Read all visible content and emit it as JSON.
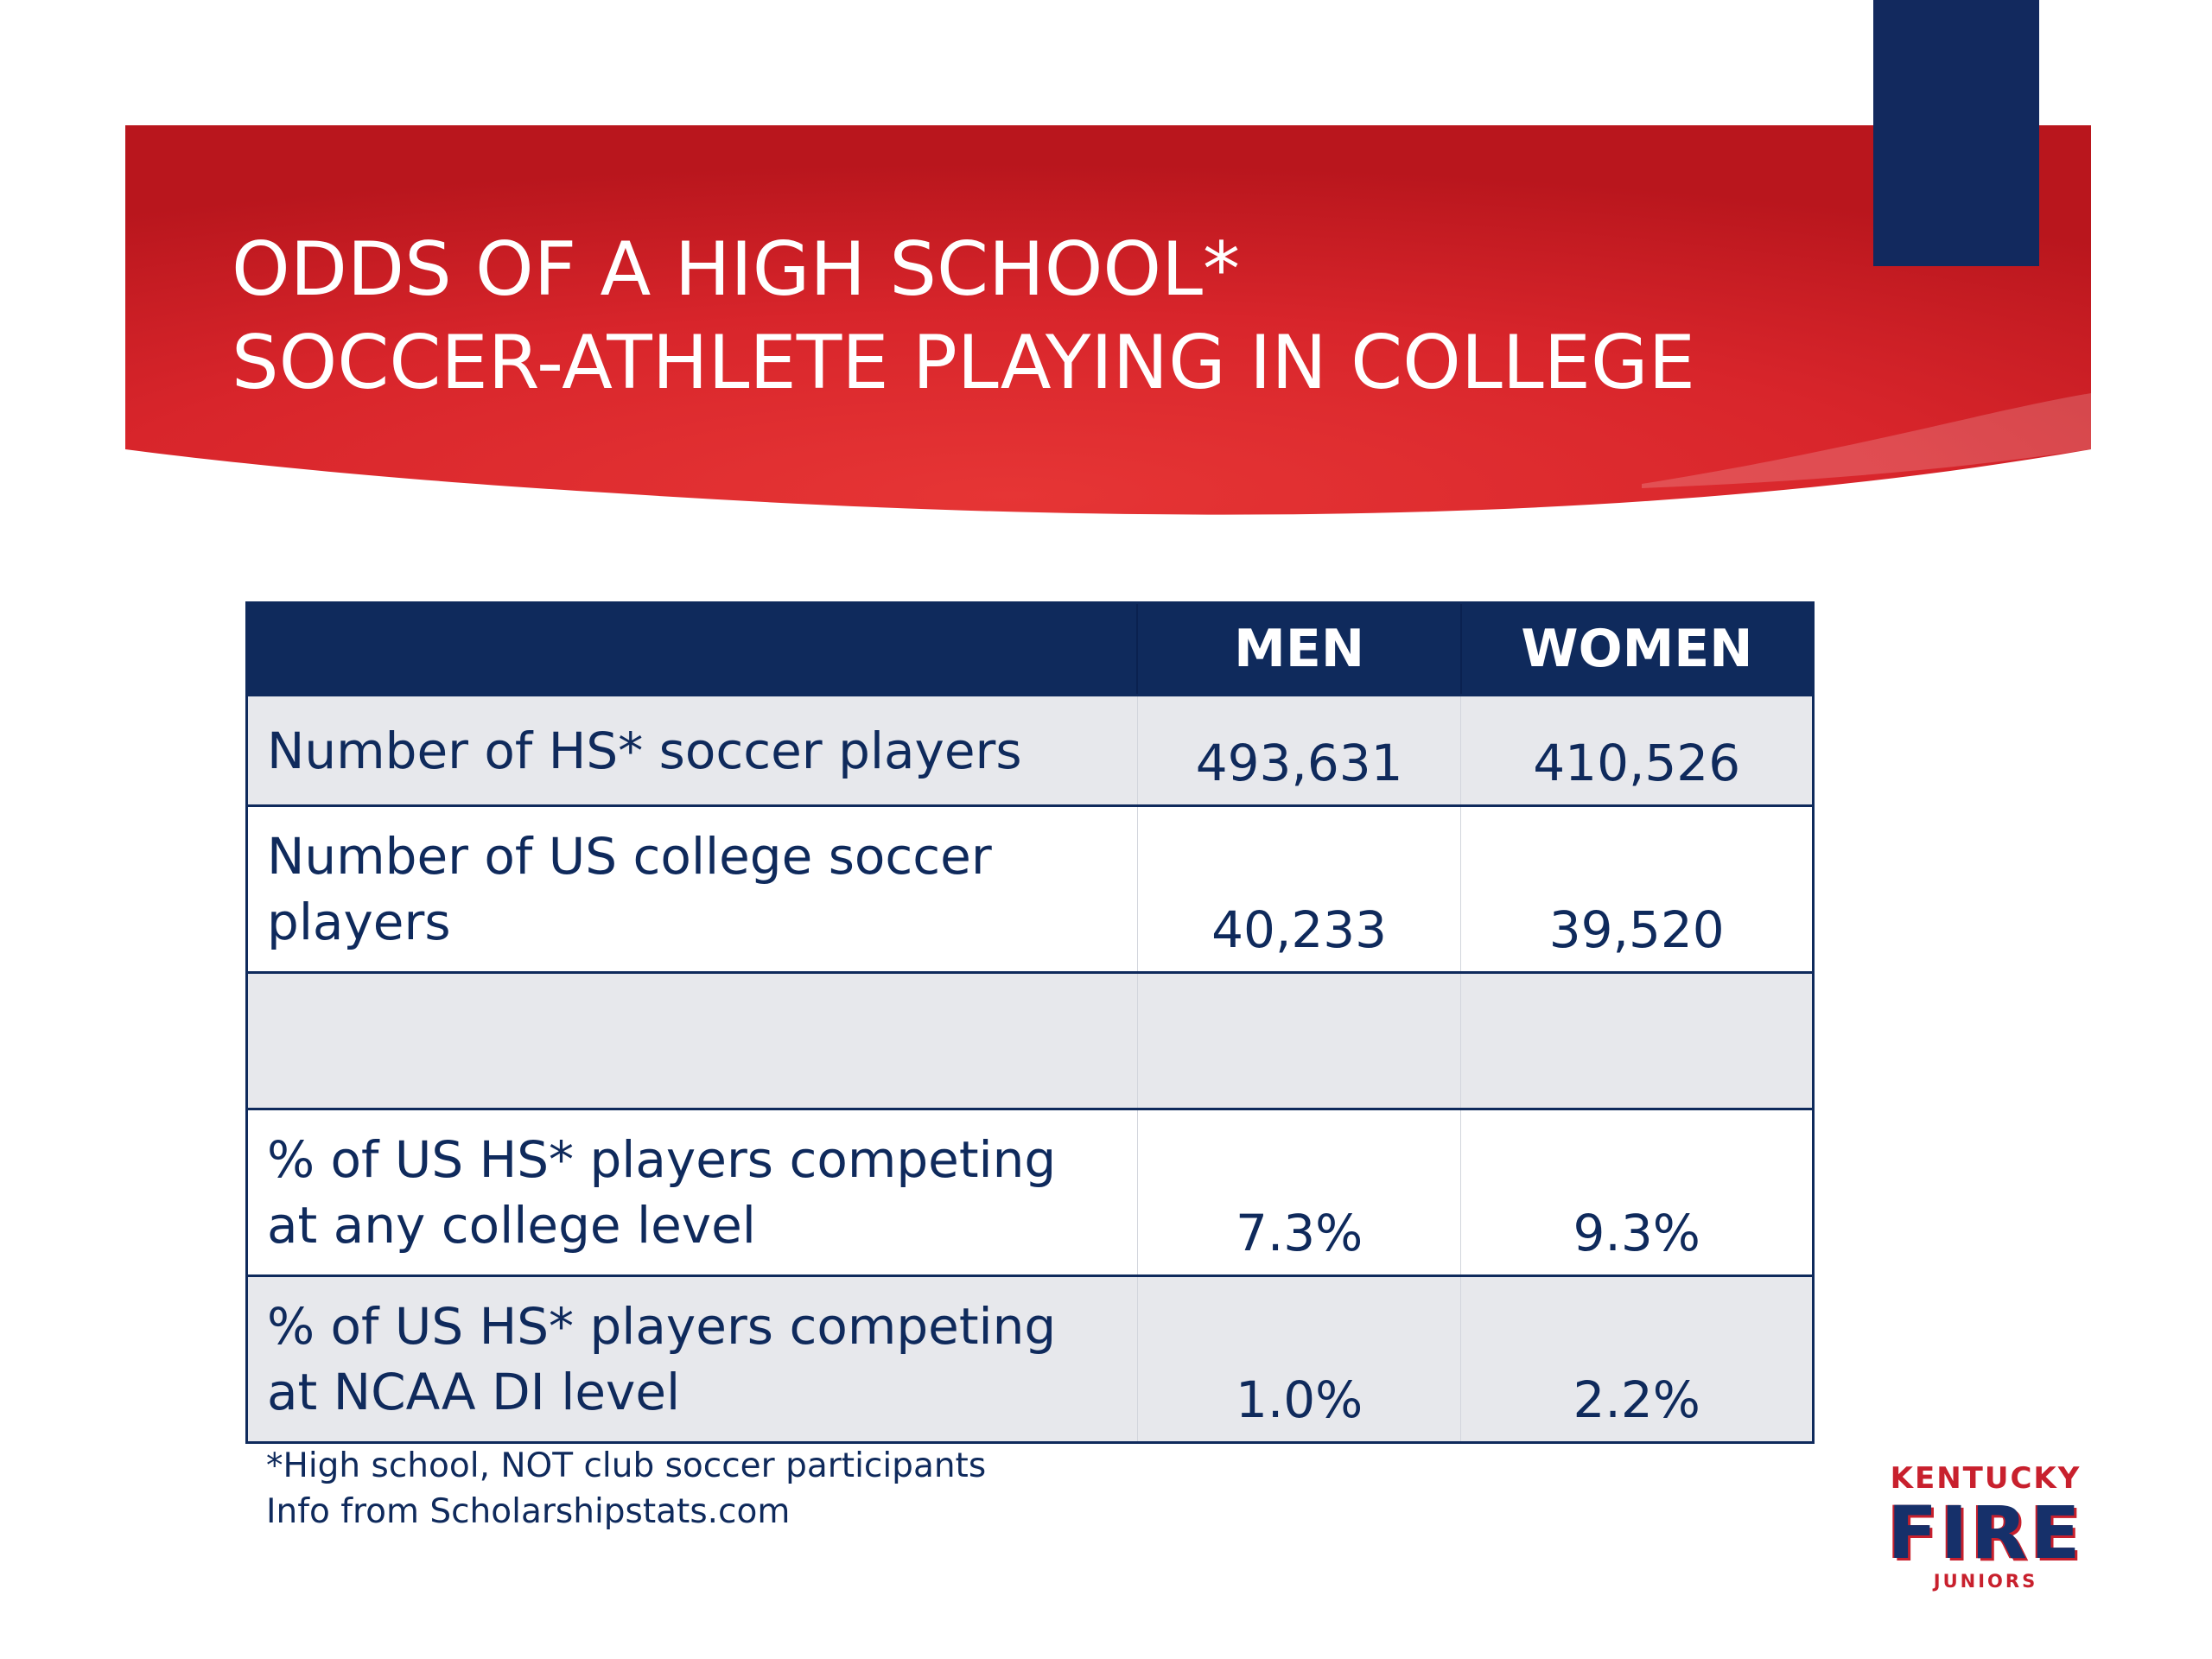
{
  "slide": {
    "title_lines": [
      "ODDS OF A HIGH SCHOOL*",
      "SOCCER-ATHLETE PLAYING IN COLLEGE"
    ],
    "colors": {
      "banner_red": "#d8252b",
      "banner_red_dark": "#b9161d",
      "navy": "#0f2a5c",
      "row_shade": "#e7e8ec"
    }
  },
  "table": {
    "headers": [
      "",
      "MEN",
      "WOMEN"
    ],
    "rows": [
      {
        "label_lines": [
          "Number of HS* soccer players"
        ],
        "men": "493,631",
        "women": "410,526"
      },
      {
        "label_lines": [
          "Number of US college soccer",
          "players"
        ],
        "men": "40,233",
        "women": "39,520"
      },
      {
        "label_lines": [],
        "men": "",
        "women": ""
      },
      {
        "label_lines": [
          "% of US HS* players competing",
          "at any college level"
        ],
        "men": "7.3%",
        "women": "9.3%"
      },
      {
        "label_lines": [
          "% of US HS* players competing",
          "at NCAA DI level"
        ],
        "men": "1.0%",
        "women": "2.2%"
      }
    ]
  },
  "footnotes": [
    "*High school, NOT club soccer participants",
    "Info from Scholarshipstats.com"
  ],
  "logo": {
    "line1": "KENTUCKY",
    "line2": "FIRE",
    "line3": "JUNIORS"
  }
}
